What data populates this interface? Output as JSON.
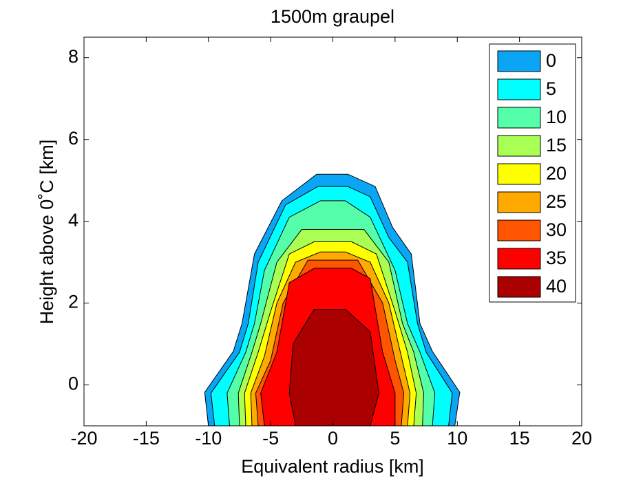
{
  "chart_data": {
    "type": "contourf",
    "title": "1500m graupel",
    "xlabel": "Equivalent radius [km]",
    "ylabel": "Height above 0˚C [km]",
    "xlim": [
      -20,
      20
    ],
    "ylim": [
      -1,
      8.5
    ],
    "xticks": [
      -20,
      -15,
      -10,
      -5,
      0,
      5,
      10,
      15,
      20
    ],
    "yticks": [
      0,
      2,
      4,
      6,
      8
    ],
    "legend": "upper right",
    "series": [
      {
        "name": "0",
        "color": "#0aa5f5",
        "x": [
          -10,
          -10.3,
          -8.0,
          -7.3,
          -6.3,
          -4.1,
          -1.3,
          1.2,
          3.4,
          4.8,
          6.3,
          7.0,
          8.0,
          10.2,
          9.8
        ],
        "y": [
          -1,
          -0.18,
          0.82,
          1.5,
          3.2,
          4.5,
          5.15,
          5.15,
          4.85,
          3.85,
          3.2,
          1.5,
          0.82,
          -0.18,
          -1
        ]
      },
      {
        "name": "5",
        "color": "#00ffff",
        "x": [
          -9.5,
          -9.8,
          -7.5,
          -6.8,
          -6.0,
          -3.8,
          -1.2,
          1.2,
          3.0,
          4.5,
          6.0,
          6.8,
          7.5,
          9.6,
          9.3
        ],
        "y": [
          -1,
          -0.2,
          0.8,
          1.5,
          3.0,
          4.4,
          4.85,
          4.85,
          4.6,
          3.6,
          3.0,
          1.5,
          0.8,
          -0.2,
          -1
        ]
      },
      {
        "name": "10",
        "color": "#55ffaa",
        "x": [
          -8.3,
          -8.5,
          -7.0,
          -6.3,
          -5.5,
          -3.5,
          -1.0,
          1.0,
          3.0,
          5.0,
          6.0,
          7.0,
          8.2,
          8.0
        ],
        "y": [
          -1,
          -0.2,
          0.8,
          1.5,
          2.8,
          4.1,
          4.5,
          4.5,
          4.1,
          2.8,
          1.5,
          0.8,
          -0.2,
          -1
        ]
      },
      {
        "name": "15",
        "color": "#aaff55",
        "x": [
          -7.5,
          -7.6,
          -6.5,
          -5.8,
          -4.5,
          -2.5,
          2.5,
          4.5,
          5.6,
          6.5,
          7.3,
          7.2
        ],
        "y": [
          -1,
          -0.2,
          0.8,
          1.5,
          3.0,
          3.8,
          3.8,
          3.0,
          1.5,
          0.8,
          -0.2,
          -1
        ]
      },
      {
        "name": "20",
        "color": "#ffff00",
        "x": [
          -7.0,
          -7.1,
          -6.0,
          -5.0,
          -3.5,
          -1.5,
          1.5,
          3.5,
          5.0,
          6.0,
          6.7,
          6.5
        ],
        "y": [
          -1,
          -0.2,
          0.8,
          1.8,
          3.2,
          3.5,
          3.5,
          3.2,
          1.8,
          0.8,
          -0.2,
          -1
        ]
      },
      {
        "name": "25",
        "color": "#ffaa00",
        "x": [
          -6.5,
          -6.6,
          -5.5,
          -4.5,
          -3.0,
          -1,
          1,
          3,
          4.5,
          5.5,
          6.2,
          6.0
        ],
        "y": [
          -1,
          -0.2,
          0.7,
          2.0,
          3.0,
          3.25,
          3.25,
          3.0,
          2.0,
          0.7,
          -0.2,
          -1
        ]
      },
      {
        "name": "30",
        "color": "#ff5500",
        "x": [
          -6.0,
          -6.2,
          -5.0,
          -4.0,
          -2.0,
          2.0,
          4.0,
          5.0,
          5.7,
          5.5
        ],
        "y": [
          -1,
          -0.2,
          0.6,
          2.0,
          3.05,
          3.05,
          2.0,
          0.6,
          -0.2,
          -1
        ]
      },
      {
        "name": "35",
        "color": "#ff0000",
        "x": [
          -5.5,
          -5.8,
          -4.5,
          -3.5,
          -1.5,
          1.5,
          3.0,
          4.0,
          5.0,
          5.0
        ],
        "y": [
          -1,
          -0.2,
          0.8,
          2.5,
          2.85,
          2.85,
          2.6,
          0.8,
          -0.2,
          -1
        ]
      },
      {
        "name": "40",
        "color": "#aa0000",
        "x": [
          -3.0,
          -3.5,
          -3.2,
          -1.5,
          1.0,
          3.0,
          3.7,
          3.0
        ],
        "y": [
          -1,
          -0.2,
          1.0,
          1.85,
          1.85,
          1.3,
          -0.2,
          -1
        ]
      }
    ]
  }
}
